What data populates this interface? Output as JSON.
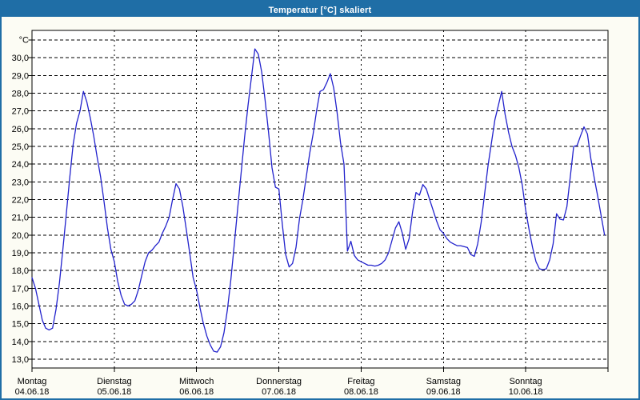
{
  "window": {
    "title": "Temperatur [°C] skaliert"
  },
  "colors": {
    "chrome": "#1f6ea6",
    "window_bg": "#fcfcf4",
    "plot_bg": "#ffffff",
    "grid": "#000000",
    "series_line": "#2222cc",
    "title_text": "#ffffff",
    "label_text": "#000000"
  },
  "chart_data": {
    "type": "line",
    "title": "Temperatur [°C] skaliert",
    "legend": "none",
    "grid": "dashed",
    "y_axis": {
      "unit_label": "°C",
      "grid_top_value": 31,
      "grid_bottom_value": 13,
      "step": 1,
      "tick_labels": [
        "30,0",
        "29,0",
        "28,0",
        "27,0",
        "26,0",
        "25,0",
        "24,0",
        "23,0",
        "22,0",
        "21,0",
        "20,0",
        "19,0",
        "18,0",
        "17,0",
        "16,0",
        "15,0",
        "14,0",
        "13,0"
      ]
    },
    "x_axis": {
      "hours_per_day": 24,
      "days": [
        {
          "name": "Montag",
          "date": "04.06.18"
        },
        {
          "name": "Dienstag",
          "date": "05.06.18"
        },
        {
          "name": "Mittwoch",
          "date": "06.06.18"
        },
        {
          "name": "Donnerstag",
          "date": "07.06.18"
        },
        {
          "name": "Freitag",
          "date": "08.06.18"
        },
        {
          "name": "Samstag",
          "date": "09.06.18"
        },
        {
          "name": "Sonntag",
          "date": "10.06.18"
        }
      ]
    },
    "series": [
      {
        "name": "Temperatur",
        "unit": "°C",
        "sampling_hours": 1,
        "values": [
          17.6,
          17.0,
          16.1,
          15.2,
          14.75,
          14.65,
          14.75,
          15.8,
          17.3,
          19.2,
          21.2,
          23.2,
          25.1,
          26.3,
          27.0,
          28.1,
          27.5,
          26.6,
          25.6,
          24.4,
          23.3,
          21.9,
          20.4,
          19.2,
          18.5,
          17.4,
          16.6,
          16.1,
          16.0,
          16.1,
          16.3,
          16.9,
          17.7,
          18.5,
          19.0,
          19.15,
          19.4,
          19.6,
          20.1,
          20.5,
          21.0,
          22.0,
          22.9,
          22.6,
          21.6,
          20.3,
          19.0,
          17.6,
          16.9,
          15.9,
          15.0,
          14.3,
          13.8,
          13.45,
          13.4,
          13.7,
          14.5,
          15.8,
          17.5,
          19.5,
          21.5,
          23.5,
          25.5,
          27.3,
          28.9,
          30.5,
          30.2,
          29.2,
          27.6,
          25.8,
          23.8,
          22.7,
          22.6,
          20.6,
          18.9,
          18.2,
          18.4,
          19.3,
          20.9,
          22.0,
          23.3,
          24.6,
          25.7,
          27.0,
          28.1,
          28.2,
          28.6,
          29.1,
          28.3,
          26.9,
          25.2,
          24.0,
          19.1,
          19.65,
          18.85,
          18.6,
          18.5,
          18.4,
          18.3,
          18.3,
          18.25,
          18.3,
          18.4,
          18.6,
          19.0,
          19.7,
          20.4,
          20.75,
          20.1,
          19.2,
          19.8,
          21.3,
          22.4,
          22.25,
          22.85,
          22.6,
          22.0,
          21.4,
          20.8,
          20.3,
          20.1,
          19.8,
          19.6,
          19.5,
          19.4,
          19.4,
          19.35,
          19.3,
          18.9,
          18.8,
          19.5,
          20.7,
          22.3,
          23.9,
          25.2,
          26.5,
          27.3,
          28.1,
          26.8,
          25.8,
          25.0,
          24.5,
          23.8,
          22.8,
          21.4,
          20.3,
          19.3,
          18.5,
          18.1,
          18.05,
          18.1,
          18.6,
          19.5,
          21.2,
          20.9,
          20.85,
          21.6,
          23.3,
          25.0,
          25.05,
          25.6,
          26.1,
          25.7,
          24.3,
          23.2,
          22.2,
          21.1,
          20.0
        ]
      }
    ]
  }
}
